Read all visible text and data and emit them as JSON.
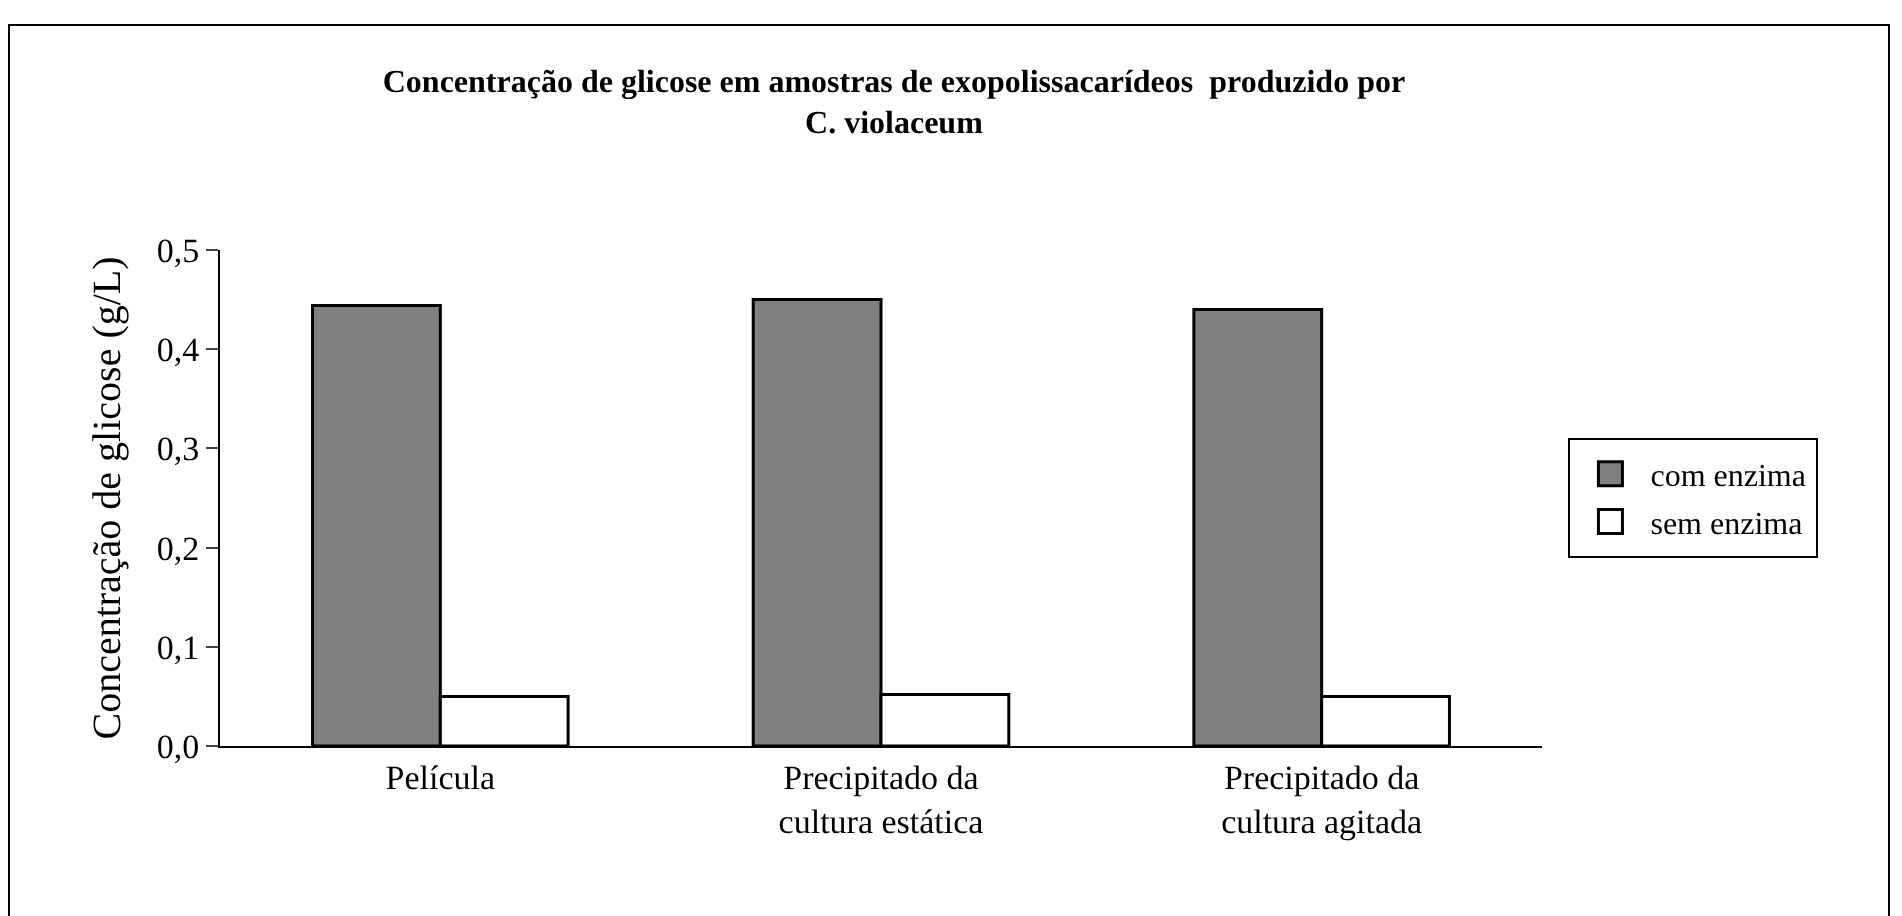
{
  "chart_data": {
    "type": "bar",
    "title": "Concentração de glicose em amostras de exopolissacarídeos  produzido por\nC. violaceum",
    "ylabel": "Concentração de glicose (g/L)",
    "categories": [
      "Película",
      "Precipitado da\ncultura estática",
      "Precipitado da\ncultura agitada"
    ],
    "series": [
      {
        "name": "com enzima",
        "color": "#808080",
        "values": [
          0.444,
          0.45,
          0.44
        ]
      },
      {
        "name": "sem enzima",
        "color": "#ffffff",
        "values": [
          0.05,
          0.052,
          0.05
        ]
      }
    ],
    "ylim": [
      0,
      0.5
    ],
    "yticks": [
      {
        "value": 0,
        "label": "0,0"
      },
      {
        "value": 0.1,
        "label": "0,1"
      },
      {
        "value": 0.2,
        "label": "0,2"
      },
      {
        "value": 0.3,
        "label": "0,3"
      },
      {
        "value": 0.4,
        "label": "0,4"
      },
      {
        "value": 0.5,
        "label": "0,5"
      }
    ],
    "grid": false,
    "legend": "right"
  }
}
